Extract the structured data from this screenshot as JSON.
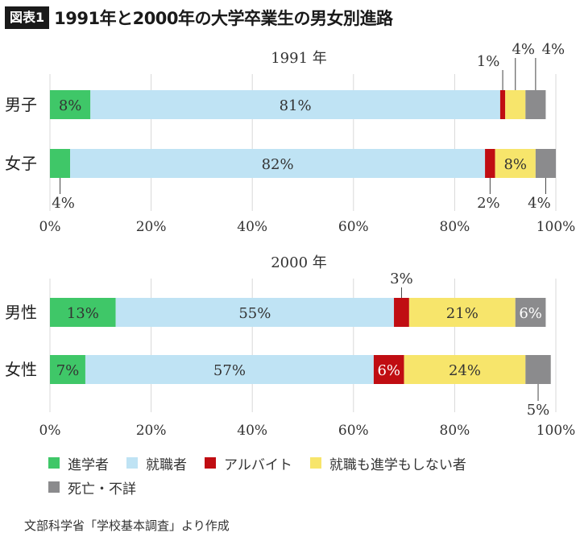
{
  "header": {
    "badge": "図表1",
    "title": "1991年と2000年の大学卒業生の男女別進路"
  },
  "colors": {
    "進学者": "#3fc768",
    "就職者": "#bfe3f4",
    "アルバイト": "#c00d12",
    "就職も進学もしない者": "#f7e56b",
    "死亡・不詳": "#8b8b8d"
  },
  "chart_data": [
    {
      "type": "bar",
      "orientation": "horizontal",
      "stacked": true,
      "title": "1991 年",
      "categories": [
        "男子",
        "女子"
      ],
      "segment_order": [
        "進学者",
        "就職者",
        "アルバイト",
        "就職も進学もしない者",
        "死亡・不詳"
      ],
      "values": {
        "男子": [
          8,
          81,
          1,
          4,
          4
        ],
        "女子": [
          4,
          82,
          2,
          8,
          4
        ]
      },
      "labels": {
        "男子": [
          "8%",
          "81%",
          "1%",
          "4%",
          "4%"
        ],
        "女子": [
          "4%",
          "82%",
          "2%",
          "8%",
          "4%"
        ]
      },
      "xlim": [
        0,
        100
      ],
      "xticks": [
        "0%",
        "20%",
        "40%",
        "60%",
        "80%",
        "100%"
      ],
      "grid": "vertical"
    },
    {
      "type": "bar",
      "orientation": "horizontal",
      "stacked": true,
      "title": "2000 年",
      "categories": [
        "男性",
        "女性"
      ],
      "segment_order": [
        "進学者",
        "就職者",
        "アルバイト",
        "就職も進学もしない者",
        "死亡・不詳"
      ],
      "values": {
        "男性": [
          13,
          55,
          3,
          21,
          6
        ],
        "女性": [
          7,
          57,
          6,
          24,
          5
        ]
      },
      "labels": {
        "男性": [
          "13%",
          "55%",
          "3%",
          "21%",
          "6%"
        ],
        "女性": [
          "7%",
          "57%",
          "6%",
          "24%",
          "5%"
        ]
      },
      "xlim": [
        0,
        100
      ],
      "xticks": [
        "0%",
        "20%",
        "40%",
        "60%",
        "80%",
        "100%"
      ],
      "grid": "vertical"
    }
  ],
  "legend": {
    "items": [
      "進学者",
      "就職者",
      "アルバイト",
      "就職も進学もしない者",
      "死亡・不詳"
    ],
    "placement": "bottom"
  },
  "source": "文部科学省「学校基本調査」より作成"
}
